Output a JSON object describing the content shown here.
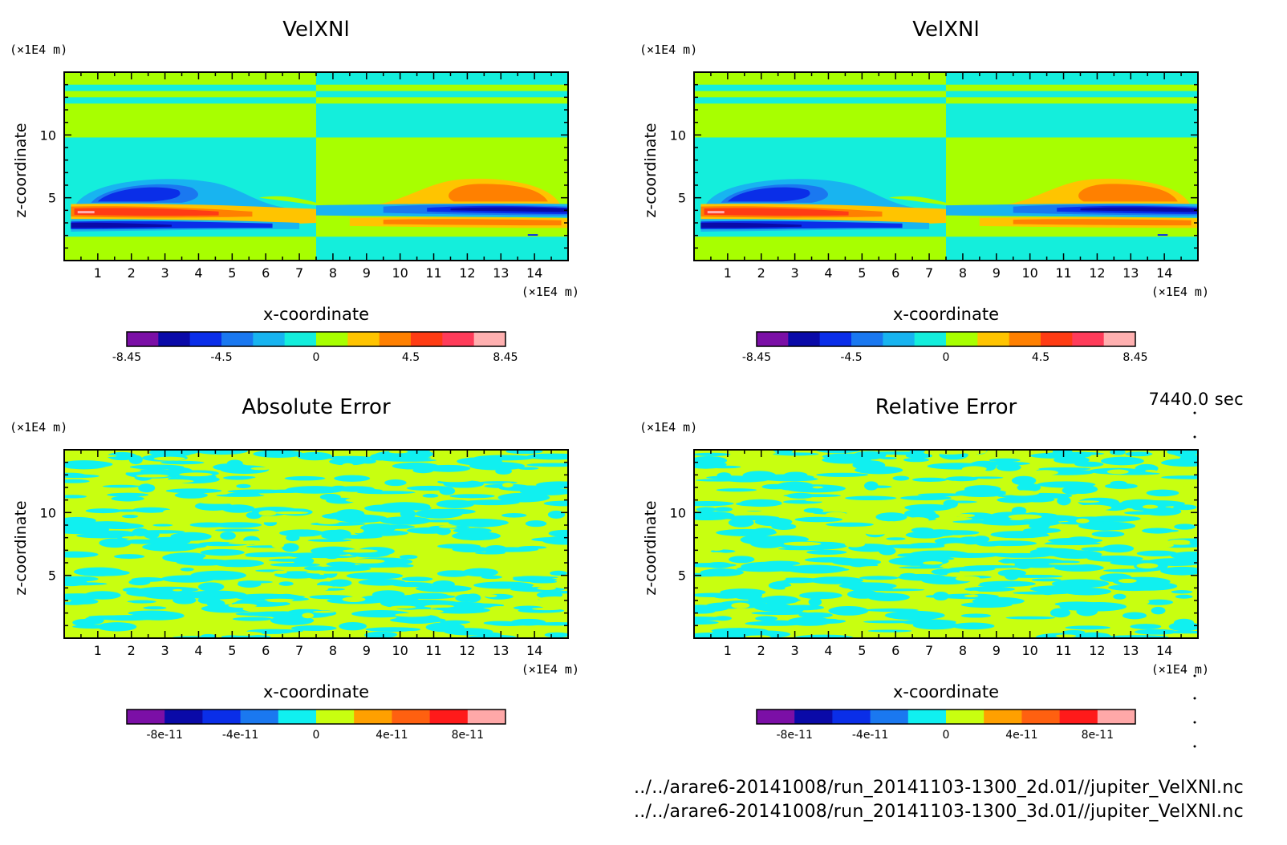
{
  "time_label": "7440.0 sec",
  "files": [
    "../../arare6-20141008/run_20141103-1300_2d.01//jupiter_VelXNl.nc",
    "../../arare6-20141008/run_20141103-1300_3d.01//jupiter_VelXNl.nc"
  ],
  "colormap": [
    "#7b0fa6",
    "#0a0aa8",
    "#0a2ee8",
    "#1a78f0",
    "#18b4f0",
    "#14eedc",
    "#a8ff00",
    "#ffc400",
    "#ff8000",
    "#ff3c14",
    "#ff3c5a",
    "#ffb0b0"
  ],
  "chart_data": [
    {
      "type": "heatmap",
      "title": "VelXNl",
      "xlabel": "x-coordinate",
      "ylabel": "z-coordinate",
      "x_unit": "(×1E4 m)",
      "y_unit": "(×1E4 m)",
      "xlim": [
        0,
        15
      ],
      "ylim": [
        0,
        15
      ],
      "xticks": [
        "1",
        "2",
        "3",
        "4",
        "5",
        "6",
        "7",
        "8",
        "9",
        "10",
        "11",
        "12",
        "13",
        "14"
      ],
      "yticks": [
        "5",
        "10"
      ],
      "colorbar": {
        "levels": 12,
        "ticks": [
          "-8.45",
          "-4.5",
          "0",
          "4.5",
          "8.45"
        ]
      },
      "field": "velocity"
    },
    {
      "type": "heatmap",
      "title": "VelXNl",
      "xlabel": "x-coordinate",
      "ylabel": "z-coordinate",
      "x_unit": "(×1E4 m)",
      "y_unit": "(×1E4 m)",
      "xlim": [
        0,
        15
      ],
      "ylim": [
        0,
        15
      ],
      "xticks": [
        "1",
        "2",
        "3",
        "4",
        "5",
        "6",
        "7",
        "8",
        "9",
        "10",
        "11",
        "12",
        "13",
        "14"
      ],
      "yticks": [
        "5",
        "10"
      ],
      "colorbar": {
        "levels": 12,
        "ticks": [
          "-8.45",
          "-4.5",
          "0",
          "4.5",
          "8.45"
        ]
      },
      "field": "velocity"
    },
    {
      "type": "heatmap",
      "title": "Absolute Error",
      "xlabel": "x-coordinate",
      "ylabel": "z-coordinate",
      "x_unit": "(×1E4 m)",
      "y_unit": "(×1E4 m)",
      "xlim": [
        0,
        15
      ],
      "ylim": [
        0,
        15
      ],
      "xticks": [
        "1",
        "2",
        "3",
        "4",
        "5",
        "6",
        "7",
        "8",
        "9",
        "10",
        "11",
        "12",
        "13",
        "14"
      ],
      "yticks": [
        "5",
        "10"
      ],
      "colorbar": {
        "levels": 10,
        "ticks": [
          "-8e-11",
          "-4e-11",
          "0",
          "4e-11",
          "8e-11"
        ]
      },
      "field": "noise"
    },
    {
      "type": "heatmap",
      "title": "Relative Error",
      "xlabel": "x-coordinate",
      "ylabel": "z-coordinate",
      "x_unit": "(×1E4 m)",
      "y_unit": "(×1E4 m)",
      "xlim": [
        0,
        15
      ],
      "ylim": [
        0,
        15
      ],
      "xticks": [
        "1",
        "2",
        "3",
        "4",
        "5",
        "6",
        "7",
        "8",
        "9",
        "10",
        "11",
        "12",
        "13",
        "14"
      ],
      "yticks": [
        "5",
        "10"
      ],
      "colorbar": {
        "levels": 10,
        "ticks": [
          "-8e-11",
          "-4e-11",
          "0",
          "4e-11",
          "8e-11"
        ]
      },
      "field": "noise"
    }
  ]
}
